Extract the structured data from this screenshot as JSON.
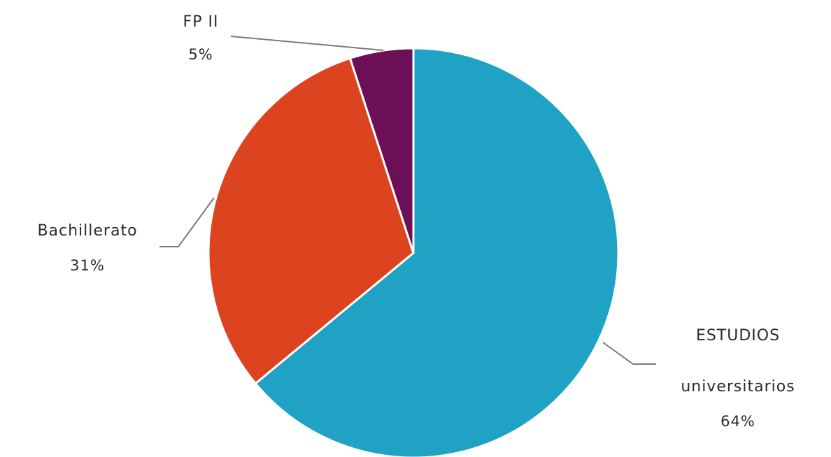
{
  "chart_data": {
    "type": "pie",
    "title": "",
    "slices": [
      {
        "label": "ESTUDIOS",
        "label_line2": "universitarios",
        "percent_label": "64%",
        "value": 64,
        "color": "#1fa2c3"
      },
      {
        "label": "Bachillerato",
        "label_line2": "",
        "percent_label": "31%",
        "value": 31,
        "color": "#dc4420"
      },
      {
        "label": "FP II",
        "label_line2": "",
        "percent_label": "5%",
        "value": 5,
        "color": "#6d0f57"
      }
    ],
    "legend": "none",
    "start_angle": "top, clockwise"
  }
}
